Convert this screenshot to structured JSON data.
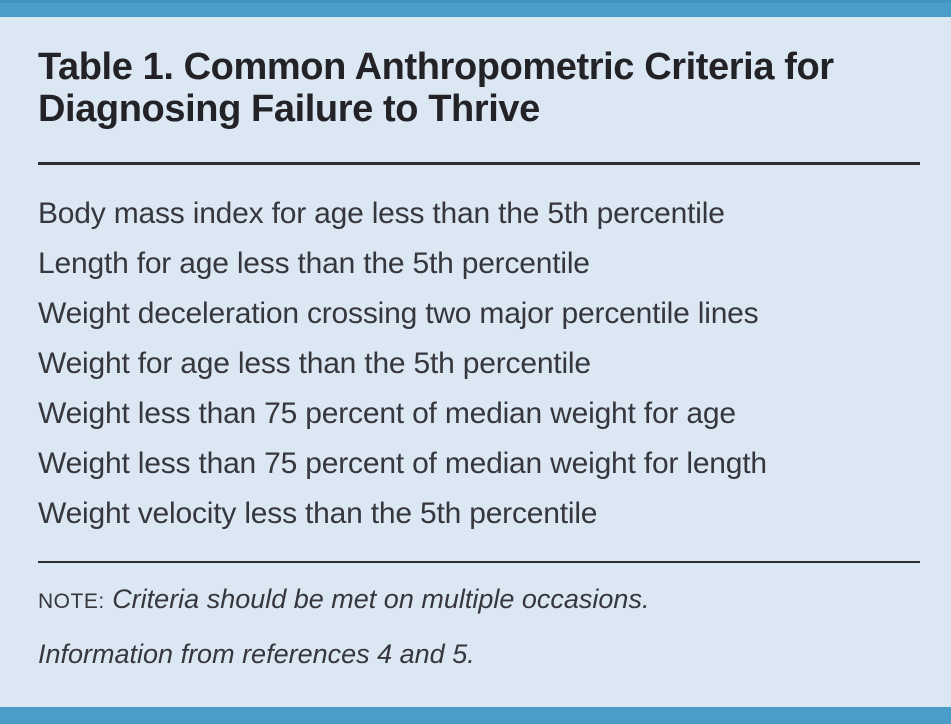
{
  "table": {
    "title": "Table 1. Common Anthropometric Criteria for Diagnosing Failure to Thrive",
    "rows": [
      "Body mass index for age less than the 5th percentile",
      "Length for age less than the 5th percentile",
      "Weight deceleration crossing two major percentile lines",
      "Weight for age less than the 5th percentile",
      "Weight less than 75 percent of median weight for age",
      "Weight less than 75 percent of median weight for length",
      "Weight velocity less than the 5th percentile"
    ],
    "note_label": "NOTE:",
    "note_text": "Criteria should be met on multiple occasions.",
    "source": "Information from references 4 and 5."
  },
  "colors": {
    "accent_bar_blue": "#4a9cc9",
    "background_light_blue": "#dce7f4",
    "title_text": "#232227",
    "body_text": "#36373c",
    "rule": "#2e2f33"
  }
}
